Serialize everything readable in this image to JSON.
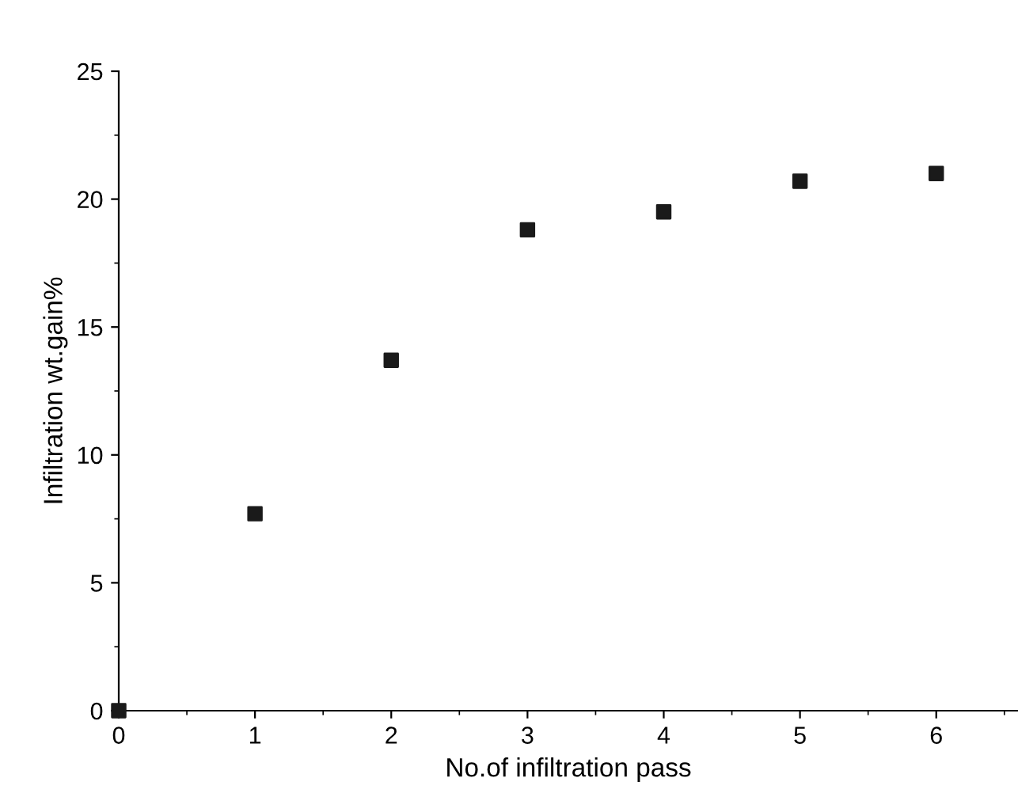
{
  "chart_data": {
    "type": "scatter",
    "xlabel": "No.of infiltration pass",
    "ylabel": "Infiltration wt.gain%",
    "x": [
      0,
      1,
      2,
      3,
      4,
      5,
      6
    ],
    "values": [
      0,
      7.7,
      13.7,
      18.8,
      19.5,
      20.7,
      21.0
    ],
    "color": "#1a1a1a",
    "marker": "square",
    "xlim": [
      0,
      6.6
    ],
    "ylim": [
      0,
      25
    ],
    "xticks": [
      0,
      1,
      2,
      3,
      4,
      5,
      6
    ],
    "yticks": [
      0,
      5,
      10,
      15,
      20,
      25
    ],
    "grid": false,
    "legend": false
  }
}
